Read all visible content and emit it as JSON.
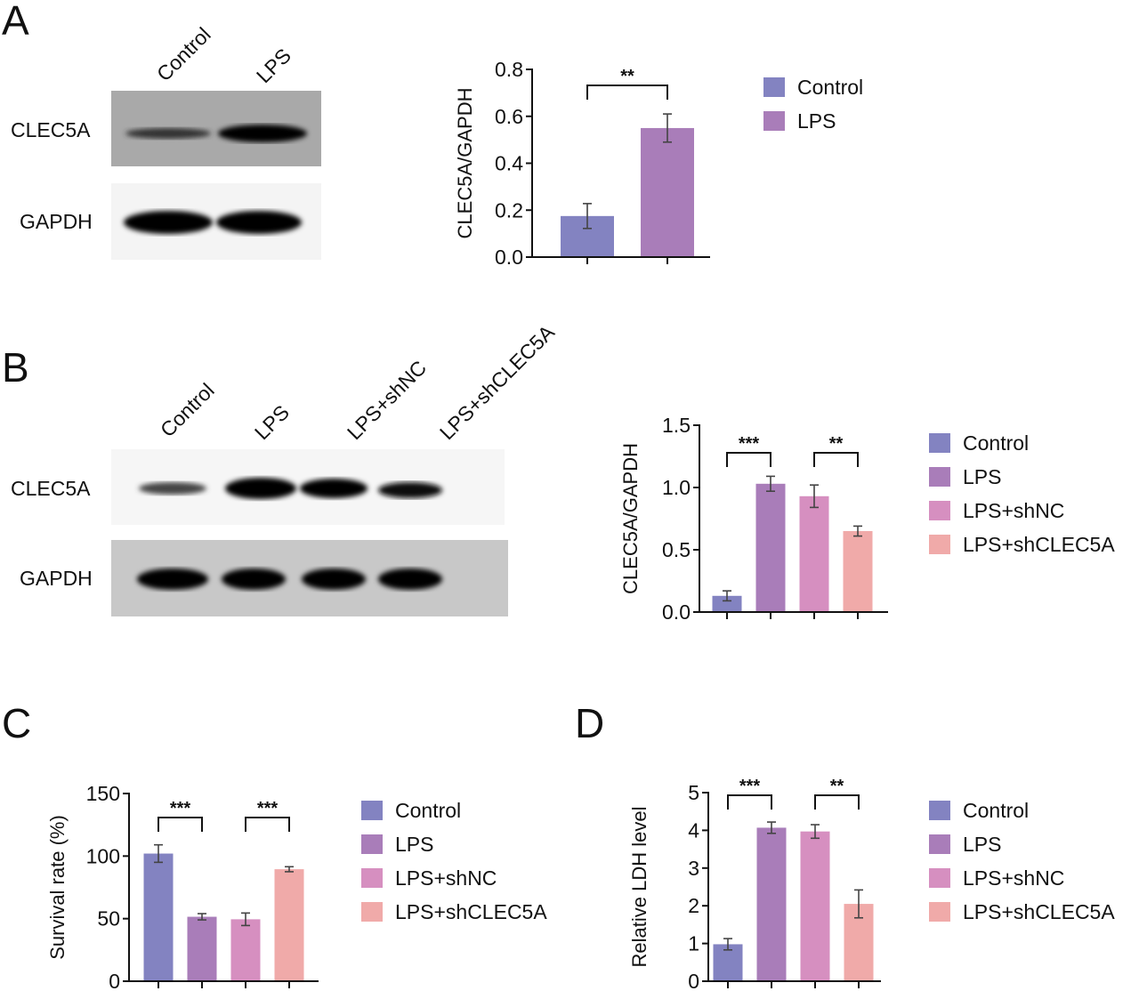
{
  "panels": {
    "A": {
      "letter": "A",
      "blot": {
        "lanes": [
          "Control",
          "LPS"
        ],
        "rows": [
          "CLEC5A",
          "GAPDH"
        ]
      }
    },
    "B": {
      "letter": "B",
      "blot": {
        "lanes": [
          "Control",
          "LPS",
          "LPS+shNC",
          "LPS+shCLEC5A"
        ],
        "rows": [
          "CLEC5A",
          "GAPDH"
        ]
      }
    },
    "C": {
      "letter": "C"
    },
    "D": {
      "letter": "D"
    }
  },
  "colors": {
    "Control": "#8383c1",
    "LPS": "#a97db9",
    "LPS+shNC": "#d68fc0",
    "LPS+shCLEC5A": "#f0aaa9"
  },
  "legend2": [
    "Control",
    "LPS"
  ],
  "legend4": [
    "Control",
    "LPS",
    "LPS+shNC",
    "LPS+shCLEC5A"
  ],
  "chart_data": [
    {
      "id": "A",
      "type": "bar",
      "categories": [
        "Control",
        "LPS"
      ],
      "values": [
        0.175,
        0.55
      ],
      "errors": [
        0.053,
        0.06
      ],
      "ylabel": "CLEC5A/GAPDH",
      "ylim": [
        0,
        0.8
      ],
      "yticks": [
        "0.0",
        "0.2",
        "0.4",
        "0.6",
        "0.8"
      ],
      "significance": [
        {
          "from": 0,
          "to": 1,
          "label": "**"
        }
      ],
      "legend_position": "right"
    },
    {
      "id": "B",
      "type": "bar",
      "categories": [
        "Control",
        "LPS",
        "LPS+shNC",
        "LPS+shCLEC5A"
      ],
      "values": [
        0.13,
        1.03,
        0.93,
        0.65
      ],
      "errors": [
        0.04,
        0.06,
        0.09,
        0.04
      ],
      "ylabel": "CLEC5A/GAPDH",
      "ylim": [
        0,
        1.5
      ],
      "yticks": [
        "0.0",
        "0.5",
        "1.0",
        "1.5"
      ],
      "significance": [
        {
          "from": 0,
          "to": 1,
          "label": "***"
        },
        {
          "from": 2,
          "to": 3,
          "label": "**"
        }
      ],
      "legend_position": "right"
    },
    {
      "id": "C",
      "type": "bar",
      "categories": [
        "Control",
        "LPS",
        "LPS+shNC",
        "LPS+shCLEC5A"
      ],
      "values": [
        102,
        51.5,
        49.5,
        89.5
      ],
      "errors": [
        7,
        2.5,
        5,
        2
      ],
      "ylabel": "Survival rate (%)",
      "ylim": [
        0,
        150
      ],
      "yticks": [
        "0",
        "50",
        "100",
        "150"
      ],
      "significance": [
        {
          "from": 0,
          "to": 1,
          "label": "***"
        },
        {
          "from": 2,
          "to": 3,
          "label": "***"
        }
      ],
      "legend_position": "right"
    },
    {
      "id": "D",
      "type": "bar",
      "categories": [
        "Control",
        "LPS",
        "LPS+shNC",
        "LPS+shCLEC5A"
      ],
      "values": [
        0.98,
        4.07,
        3.97,
        2.05
      ],
      "errors": [
        0.15,
        0.15,
        0.18,
        0.37
      ],
      "ylabel": "Relative LDH level",
      "ylim": [
        0,
        5
      ],
      "yticks": [
        "0",
        "1",
        "2",
        "3",
        "4",
        "5"
      ],
      "significance": [
        {
          "from": 0,
          "to": 1,
          "label": "***"
        },
        {
          "from": 2,
          "to": 3,
          "label": "**"
        }
      ],
      "legend_position": "right"
    }
  ]
}
